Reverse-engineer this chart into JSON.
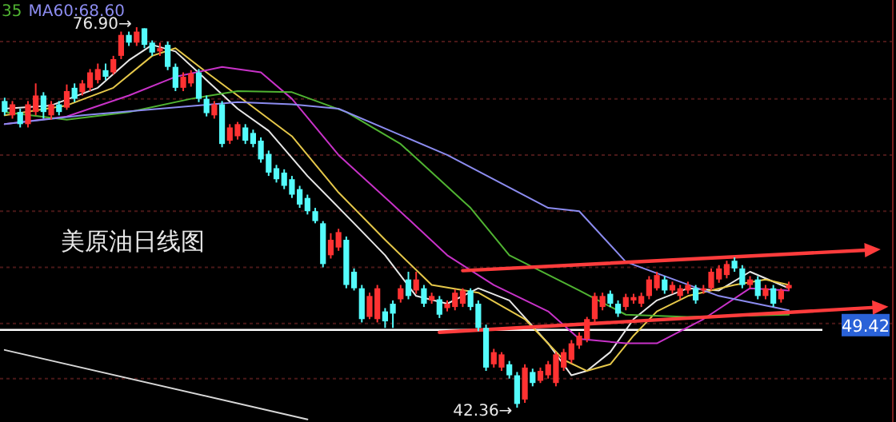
{
  "chart_data": {
    "type": "candlestick",
    "categories": [
      null,
      null,
      null,
      null,
      null,
      null,
      null,
      null,
      null,
      null,
      null,
      null,
      null,
      null,
      null,
      null,
      null,
      null,
      null,
      null,
      null,
      null,
      null,
      null,
      null,
      null,
      null,
      null,
      null,
      null,
      null,
      null,
      null,
      null,
      null,
      null,
      null,
      null,
      null,
      null,
      null,
      null,
      null,
      null,
      null,
      null,
      null,
      null,
      null,
      null,
      null,
      null,
      null,
      null,
      null,
      null,
      null,
      null,
      null,
      null,
      null,
      null,
      null,
      null,
      null,
      null,
      null,
      null,
      null,
      null,
      null,
      null,
      null,
      null,
      null,
      null,
      null,
      null,
      null,
      null,
      null,
      null,
      null,
      null,
      null,
      null,
      null,
      null,
      null,
      null,
      null,
      null,
      null,
      null,
      null,
      null,
      null,
      null,
      null,
      null,
      null,
      null,
      null,
      null,
      null,
      null,
      null,
      null,
      null,
      null,
      null,
      null,
      null,
      null,
      null
    ],
    "ohlc": [
      [
        70.2,
        70.5,
        68.9,
        69.2
      ],
      [
        68.9,
        70.2,
        68.6,
        69.9
      ],
      [
        69.2,
        69.5,
        67.8,
        68.1
      ],
      [
        68.1,
        70.2,
        67.8,
        69.9
      ],
      [
        69.2,
        71.8,
        68.9,
        70.7
      ],
      [
        70.7,
        71.0,
        68.6,
        69.2
      ],
      [
        68.9,
        70.2,
        68.5,
        69.9
      ],
      [
        69.9,
        70.2,
        68.9,
        69.2
      ],
      [
        69.6,
        71.7,
        69.4,
        71.1
      ],
      [
        71.4,
        71.8,
        70.1,
        70.4
      ],
      [
        71.0,
        72.1,
        70.7,
        71.8
      ],
      [
        71.4,
        73.1,
        71.1,
        72.8
      ],
      [
        72.1,
        73.6,
        71.8,
        73.1
      ],
      [
        73.0,
        73.6,
        72.1,
        72.4
      ],
      [
        72.8,
        74.3,
        72.6,
        74.0
      ],
      [
        74.3,
        76.5,
        74.0,
        76.2
      ],
      [
        76.2,
        76.5,
        75.2,
        75.5
      ],
      [
        75.5,
        76.9,
        75.2,
        76.5
      ],
      [
        76.8,
        76.8,
        75.0,
        75.3
      ],
      [
        75.5,
        75.7,
        74.3,
        74.6
      ],
      [
        74.7,
        75.5,
        74.3,
        75.0
      ],
      [
        75.3,
        75.6,
        73.0,
        73.3
      ],
      [
        73.3,
        73.6,
        71.1,
        71.4
      ],
      [
        71.4,
        72.8,
        71.1,
        72.4
      ],
      [
        71.8,
        73.0,
        71.5,
        72.7
      ],
      [
        72.8,
        73.1,
        70.1,
        70.4
      ],
      [
        70.4,
        70.7,
        68.8,
        69.1
      ],
      [
        68.9,
        70.2,
        68.6,
        69.9
      ],
      [
        69.9,
        70.2,
        66.0,
        66.3
      ],
      [
        66.6,
        68.1,
        66.3,
        67.8
      ],
      [
        67.0,
        68.3,
        66.7,
        68.1
      ],
      [
        67.8,
        68.1,
        66.3,
        66.6
      ],
      [
        67.3,
        67.6,
        66.0,
        66.3
      ],
      [
        66.6,
        66.9,
        64.6,
        64.9
      ],
      [
        65.4,
        65.7,
        63.4,
        63.7
      ],
      [
        64.1,
        64.4,
        62.8,
        63.1
      ],
      [
        63.7,
        64.0,
        62.2,
        62.5
      ],
      [
        63.1,
        63.4,
        61.4,
        61.7
      ],
      [
        62.2,
        62.5,
        60.5,
        60.8
      ],
      [
        61.4,
        61.7,
        59.9,
        60.2
      ],
      [
        60.2,
        60.5,
        59.1,
        59.3
      ],
      [
        59.1,
        59.3,
        55.1,
        55.4
      ],
      [
        56.2,
        58.2,
        55.9,
        57.6
      ],
      [
        56.9,
        58.6,
        56.6,
        58.3
      ],
      [
        57.6,
        57.9,
        53.2,
        53.5
      ],
      [
        54.7,
        55.0,
        53.0,
        53.2
      ],
      [
        53.2,
        53.5,
        50.1,
        50.4
      ],
      [
        50.6,
        52.8,
        50.4,
        52.5
      ],
      [
        50.4,
        53.5,
        50.1,
        53.2
      ],
      [
        51.1,
        51.4,
        49.6,
        50.2
      ],
      [
        51.8,
        52.1,
        49.6,
        50.9
      ],
      [
        52.2,
        53.5,
        51.9,
        53.2
      ],
      [
        54.0,
        54.7,
        52.2,
        52.5
      ],
      [
        53.0,
        54.7,
        52.7,
        54.0
      ],
      [
        53.2,
        53.5,
        51.5,
        51.8
      ],
      [
        52.1,
        52.8,
        51.8,
        52.5
      ],
      [
        52.2,
        52.5,
        50.5,
        50.8
      ],
      [
        51.4,
        52.1,
        51.1,
        51.8
      ],
      [
        51.5,
        53.1,
        51.2,
        52.8
      ],
      [
        51.8,
        53.2,
        51.5,
        53.0
      ],
      [
        53.0,
        53.2,
        51.2,
        51.5
      ],
      [
        51.8,
        52.1,
        49.3,
        49.6
      ],
      [
        49.6,
        49.9,
        45.7,
        46.0
      ],
      [
        46.3,
        47.7,
        46.0,
        47.4
      ],
      [
        46.0,
        47.4,
        45.7,
        47.2
      ],
      [
        46.3,
        46.6,
        45.0,
        45.3
      ],
      [
        45.3,
        45.6,
        42.36,
        42.7
      ],
      [
        43.1,
        46.3,
        42.8,
        46.0
      ],
      [
        45.6,
        45.9,
        44.3,
        44.6
      ],
      [
        44.8,
        46.0,
        44.6,
        45.7
      ],
      [
        45.3,
        46.6,
        45.0,
        46.3
      ],
      [
        44.6,
        47.4,
        44.3,
        47.2
      ],
      [
        46.0,
        47.7,
        45.7,
        47.4
      ],
      [
        46.7,
        48.5,
        46.4,
        48.2
      ],
      [
        48.0,
        49.2,
        47.7,
        48.9
      ],
      [
        48.6,
        50.6,
        48.3,
        50.4
      ],
      [
        50.4,
        52.8,
        50.1,
        52.5
      ],
      [
        51.5,
        52.8,
        51.2,
        52.5
      ],
      [
        52.7,
        53.0,
        51.5,
        51.8
      ],
      [
        51.8,
        52.1,
        50.6,
        50.9
      ],
      [
        51.5,
        52.7,
        51.2,
        52.4
      ],
      [
        52.1,
        52.7,
        51.8,
        52.4
      ],
      [
        51.8,
        52.8,
        51.5,
        52.5
      ],
      [
        52.5,
        54.3,
        52.2,
        54.0
      ],
      [
        53.2,
        54.7,
        53.0,
        54.4
      ],
      [
        54.0,
        54.3,
        52.7,
        53.0
      ],
      [
        53.0,
        53.8,
        52.7,
        53.5
      ],
      [
        52.5,
        53.5,
        52.2,
        53.2
      ],
      [
        53.0,
        53.8,
        52.7,
        53.5
      ],
      [
        53.2,
        53.5,
        51.8,
        52.1
      ],
      [
        53.0,
        53.5,
        52.7,
        53.2
      ],
      [
        53.2,
        55.0,
        53.0,
        54.7
      ],
      [
        54.0,
        55.3,
        53.7,
        55.0
      ],
      [
        54.4,
        55.7,
        54.1,
        55.4
      ],
      [
        55.7,
        56.0,
        54.7,
        55.0
      ],
      [
        55.0,
        55.3,
        53.2,
        53.5
      ],
      [
        53.5,
        54.3,
        53.2,
        54.0
      ],
      [
        54.0,
        54.3,
        52.2,
        52.5
      ],
      [
        52.5,
        53.5,
        52.2,
        53.2
      ],
      [
        53.2,
        53.5,
        51.5,
        51.8
      ],
      [
        52.2,
        53.2,
        51.9,
        53.0
      ],
      [
        53.2,
        53.8,
        53.0,
        53.5
      ],
      null,
      null,
      null,
      null,
      null,
      null,
      null,
      null,
      null,
      null,
      null,
      null,
      null
    ],
    "series": [
      {
        "type": "line",
        "color": "#e8e8e8",
        "values": [
          69.5,
          null,
          null,
          null,
          null,
          null,
          69.8,
          null,
          null,
          null,
          null,
          null,
          71.4,
          null,
          null,
          null,
          73.9,
          null,
          null,
          75.3,
          null,
          null,
          74.7,
          null,
          null,
          null,
          72.1,
          null,
          null,
          null,
          69.5,
          null,
          null,
          null,
          67.5,
          null,
          null,
          null,
          null,
          63.4,
          null,
          null,
          null,
          null,
          null,
          59.1,
          null,
          null,
          null,
          56.2,
          null,
          null,
          null,
          52.5,
          null,
          null,
          null,
          51.8,
          null,
          null,
          null,
          53.2,
          null,
          null,
          null,
          52.1,
          null,
          null,
          null,
          null,
          48.2,
          null,
          null,
          45.3,
          null,
          45.7,
          null,
          null,
          47.4,
          null,
          null,
          50.4,
          null,
          null,
          52.1,
          null,
          null,
          null,
          53.2,
          null,
          null,
          null,
          53.0,
          null,
          null,
          null,
          54.7,
          null,
          null,
          null,
          53.5,
          53.2,
          null,
          null,
          null,
          null,
          null,
          null,
          null,
          null,
          null,
          null,
          null,
          null,
          null
        ]
      },
      {
        "type": "line",
        "color": "#e6c84a",
        "values": [
          68.9,
          null,
          null,
          null,
          null,
          null,
          null,
          null,
          69.8,
          null,
          null,
          null,
          null,
          null,
          71.4,
          null,
          null,
          null,
          null,
          74.3,
          null,
          null,
          75.0,
          null,
          null,
          null,
          72.8,
          null,
          null,
          null,
          70.7,
          null,
          null,
          null,
          null,
          null,
          null,
          67.0,
          null,
          null,
          null,
          null,
          null,
          61.9,
          null,
          null,
          null,
          null,
          null,
          57.6,
          null,
          null,
          null,
          null,
          null,
          53.5,
          null,
          null,
          null,
          null,
          null,
          52.8,
          null,
          null,
          null,
          null,
          null,
          50.4,
          null,
          null,
          null,
          null,
          46.7,
          null,
          null,
          45.7,
          null,
          null,
          46.3,
          null,
          null,
          48.9,
          null,
          null,
          51.1,
          null,
          null,
          null,
          52.5,
          null,
          null,
          null,
          null,
          null,
          53.5,
          null,
          null,
          null,
          54.0,
          null,
          null,
          53.5,
          null,
          null,
          null,
          null,
          null,
          null,
          null,
          null,
          null,
          null,
          null,
          null,
          null
        ]
      },
      {
        "type": "line",
        "color": "#c832c8",
        "values": [
          68.1,
          null,
          null,
          null,
          null,
          null,
          null,
          null,
          68.8,
          null,
          null,
          null,
          null,
          null,
          null,
          null,
          70.7,
          null,
          null,
          null,
          null,
          null,
          72.4,
          null,
          null,
          null,
          null,
          null,
          73.3,
          null,
          null,
          null,
          null,
          72.8,
          null,
          null,
          null,
          70.4,
          null,
          null,
          null,
          null,
          null,
          65.3,
          null,
          null,
          null,
          null,
          null,
          null,
          60.8,
          null,
          null,
          null,
          null,
          null,
          null,
          56.2,
          null,
          null,
          null,
          null,
          null,
          53.5,
          null,
          null,
          null,
          null,
          null,
          null,
          51.1,
          null,
          null,
          null,
          48.6,
          null,
          null,
          null,
          null,
          null,
          48.2,
          null,
          null,
          null,
          48.2,
          null,
          null,
          null,
          null,
          null,
          50.4,
          null,
          null,
          null,
          null,
          null,
          53.2,
          null,
          null,
          null,
          null,
          53.0,
          null,
          null,
          null,
          null,
          null,
          null,
          null,
          null,
          null,
          null,
          null,
          null,
          null
        ]
      },
      {
        "type": "line",
        "name": "35",
        "color": "#50b432",
        "values": [
          69.2,
          null,
          null,
          null,
          null,
          null,
          null,
          null,
          68.5,
          null,
          null,
          null,
          null,
          null,
          null,
          null,
          69.2,
          null,
          null,
          null,
          null,
          null,
          null,
          null,
          70.4,
          null,
          null,
          null,
          null,
          null,
          71.1,
          null,
          null,
          null,
          null,
          null,
          null,
          71.0,
          null,
          null,
          null,
          null,
          null,
          null,
          69.2,
          null,
          null,
          null,
          null,
          null,
          null,
          66.3,
          null,
          null,
          null,
          null,
          null,
          null,
          null,
          null,
          60.5,
          null,
          null,
          null,
          null,
          56.2,
          null,
          null,
          null,
          null,
          null,
          null,
          null,
          null,
          53.0,
          null,
          null,
          null,
          null,
          null,
          50.8,
          null,
          null,
          null,
          null,
          null,
          null,
          null,
          50.6,
          null,
          null,
          null,
          null,
          null,
          null,
          null,
          null,
          null,
          null,
          null,
          null,
          50.8,
          null,
          null,
          null,
          null,
          null,
          null,
          null,
          null,
          null,
          null,
          null,
          null,
          null
        ]
      },
      {
        "type": "line",
        "name": "MA60:68.60",
        "color": "#8c8cf0",
        "values": [
          68.1,
          null,
          null,
          null,
          null,
          null,
          null,
          null,
          null,
          null,
          68.9,
          null,
          null,
          null,
          null,
          null,
          null,
          null,
          null,
          null,
          69.5,
          null,
          null,
          null,
          null,
          null,
          null,
          null,
          null,
          null,
          70.1,
          null,
          null,
          null,
          null,
          null,
          null,
          69.9,
          null,
          null,
          null,
          null,
          null,
          69.5,
          null,
          null,
          null,
          null,
          null,
          null,
          null,
          null,
          null,
          null,
          null,
          null,
          null,
          65.3,
          null,
          null,
          null,
          null,
          null,
          null,
          null,
          null,
          null,
          null,
          null,
          null,
          60.5,
          null,
          null,
          null,
          60.2,
          null,
          null,
          null,
          null,
          null,
          55.6,
          null,
          null,
          null,
          null,
          null,
          null,
          null,
          null,
          null,
          null,
          null,
          52.5,
          null,
          null,
          null,
          null,
          null,
          null,
          null,
          null,
          51.2,
          null,
          null,
          null,
          null,
          null,
          null,
          null,
          null,
          null,
          null,
          null,
          null,
          null
        ]
      },
      {
        "type": "line",
        "color": "#ff3c3c",
        "marker": "triangle",
        "values": [
          null,
          null,
          null,
          null,
          null,
          null,
          null,
          null,
          null,
          null,
          null,
          null,
          null,
          null,
          null,
          null,
          null,
          null,
          null,
          null,
          null,
          null,
          null,
          null,
          null,
          null,
          null,
          null,
          null,
          null,
          null,
          null,
          null,
          null,
          null,
          null,
          null,
          null,
          null,
          null,
          null,
          null,
          null,
          null,
          null,
          null,
          null,
          null,
          null,
          null,
          null,
          null,
          null,
          null,
          null,
          null,
          null,
          null,
          null,
          54.8,
          null,
          null,
          null,
          null,
          null,
          null,
          null,
          null,
          null,
          null,
          null,
          null,
          null,
          null,
          null,
          null,
          null,
          null,
          null,
          null,
          null,
          null,
          null,
          null,
          null,
          null,
          null,
          null,
          null,
          null,
          null,
          null,
          null,
          null,
          null,
          null,
          null,
          null,
          null,
          null,
          null,
          null,
          null,
          null,
          null,
          null,
          null,
          null,
          null,
          null,
          null,
          null,
          56.7,
          null,
          null
        ]
      },
      {
        "type": "line",
        "color": "#ff3c3c",
        "marker": "triangle",
        "values": [
          null,
          null,
          null,
          null,
          null,
          null,
          null,
          null,
          null,
          null,
          null,
          null,
          null,
          null,
          null,
          null,
          null,
          null,
          null,
          null,
          null,
          null,
          null,
          null,
          null,
          null,
          null,
          null,
          null,
          null,
          null,
          null,
          null,
          null,
          null,
          null,
          null,
          null,
          null,
          null,
          null,
          null,
          null,
          null,
          null,
          null,
          null,
          null,
          null,
          null,
          null,
          null,
          null,
          null,
          null,
          null,
          49.2,
          null,
          null,
          null,
          null,
          null,
          null,
          null,
          null,
          null,
          null,
          null,
          null,
          null,
          null,
          null,
          null,
          null,
          null,
          null,
          null,
          null,
          null,
          null,
          null,
          null,
          null,
          null,
          null,
          null,
          null,
          null,
          null,
          null,
          null,
          null,
          null,
          null,
          null,
          null,
          null,
          null,
          null,
          null,
          null,
          null,
          null,
          null,
          null,
          null,
          null,
          null,
          null,
          null,
          null,
          null,
          null,
          51.5,
          null
        ]
      },
      {
        "type": "line",
        "color": "#d8d8d8",
        "values": [
          47.6,
          null,
          null,
          null,
          null,
          null,
          null,
          null,
          null,
          null,
          null,
          null,
          null,
          null,
          null,
          null,
          null,
          null,
          null,
          null,
          null,
          null,
          null,
          null,
          null,
          null,
          null,
          null,
          null,
          null,
          null,
          null,
          null,
          null,
          null,
          null,
          null,
          null,
          null,
          41.3,
          null,
          null,
          null,
          null,
          null,
          null,
          null,
          null,
          null,
          null,
          null,
          null,
          null,
          null,
          null,
          null,
          null,
          null,
          null,
          null,
          null,
          null,
          null,
          null,
          null,
          null,
          null,
          null,
          null,
          null,
          null,
          null,
          null,
          null,
          null,
          null,
          null,
          null,
          null,
          null,
          null,
          null,
          null,
          null,
          null,
          null,
          null,
          null,
          null,
          null,
          null,
          null,
          null,
          null,
          null,
          null,
          null,
          null,
          null,
          null,
          null,
          null,
          null,
          null,
          null,
          null,
          null,
          null,
          null,
          null,
          null,
          null,
          null,
          null,
          null
        ]
      }
    ],
    "ylim": [
      41.06,
      79.37
    ],
    "yticks": [
      {
        "value": 75.6,
        "label": null
      },
      {
        "value": 70.4,
        "label": null
      },
      {
        "value": 65.3,
        "label": null
      },
      {
        "value": 60.2,
        "label": null
      },
      {
        "value": 55.1,
        "label": null
      },
      {
        "value": 50.0,
        "label": null
      },
      {
        "value": 45.0,
        "label": null
      }
    ],
    "grid": "y",
    "ref_lines": [
      {
        "axis": "y",
        "value": 49.42,
        "label": "49.42",
        "color": "#ffffff"
      }
    ],
    "annotations": [
      "美原油日线图",
      "76.90→",
      "42.36→"
    ]
  }
}
